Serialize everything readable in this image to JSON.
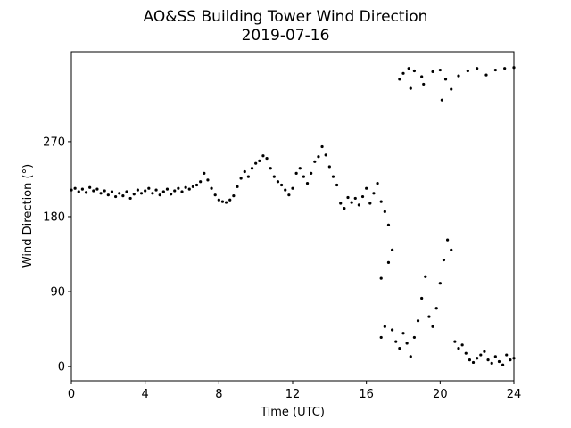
{
  "chart_data": {
    "type": "scatter",
    "title": "AO&SS Building Tower Wind Direction",
    "subtitle": "2019-07-16",
    "xlabel": "Time (UTC)",
    "ylabel": "Wind Direction (°)",
    "xlim": [
      0,
      24
    ],
    "ylim": [
      -17,
      378
    ],
    "xticks": [
      0,
      4,
      8,
      12,
      16,
      20,
      24
    ],
    "yticks": [
      0,
      90,
      180,
      270
    ],
    "xtick_labels": [
      "0",
      "4",
      "8",
      "12",
      "16",
      "20",
      "24"
    ],
    "ytick_labels": [
      "0",
      "90",
      "180",
      "270"
    ],
    "grid": false,
    "marker_color": "#000000",
    "series": [
      {
        "points": [
          [
            0.0,
            212
          ],
          [
            0.2,
            214
          ],
          [
            0.4,
            210
          ],
          [
            0.6,
            213
          ],
          [
            0.8,
            209
          ],
          [
            1.0,
            215
          ],
          [
            1.2,
            211
          ],
          [
            1.4,
            213
          ],
          [
            1.6,
            208
          ],
          [
            1.8,
            211
          ],
          [
            2.0,
            206
          ],
          [
            2.2,
            210
          ],
          [
            2.4,
            204
          ],
          [
            2.6,
            208
          ],
          [
            2.8,
            205
          ],
          [
            3.0,
            210
          ],
          [
            3.2,
            202
          ],
          [
            3.4,
            207
          ],
          [
            3.6,
            212
          ],
          [
            3.8,
            208
          ],
          [
            4.0,
            211
          ],
          [
            4.2,
            214
          ],
          [
            4.4,
            208
          ],
          [
            4.6,
            212
          ],
          [
            4.8,
            206
          ],
          [
            5.0,
            210
          ],
          [
            5.2,
            213
          ],
          [
            5.4,
            207
          ],
          [
            5.6,
            211
          ],
          [
            5.8,
            214
          ],
          [
            6.0,
            210
          ],
          [
            6.2,
            215
          ],
          [
            6.4,
            213
          ],
          [
            6.6,
            216
          ],
          [
            6.8,
            218
          ],
          [
            7.0,
            222
          ],
          [
            7.2,
            232
          ],
          [
            7.4,
            224
          ],
          [
            7.6,
            214
          ],
          [
            7.8,
            206
          ],
          [
            8.0,
            200
          ],
          [
            8.2,
            198
          ],
          [
            8.4,
            197
          ],
          [
            8.6,
            200
          ],
          [
            8.8,
            205
          ],
          [
            9.0,
            216
          ],
          [
            9.2,
            226
          ],
          [
            9.4,
            234
          ],
          [
            9.6,
            228
          ],
          [
            9.8,
            238
          ],
          [
            10.0,
            244
          ],
          [
            10.2,
            247
          ],
          [
            10.4,
            253
          ],
          [
            10.6,
            250
          ],
          [
            10.8,
            238
          ],
          [
            11.0,
            228
          ],
          [
            11.2,
            222
          ],
          [
            11.4,
            218
          ],
          [
            11.6,
            212
          ],
          [
            11.8,
            206
          ],
          [
            12.0,
            214
          ],
          [
            12.2,
            232
          ],
          [
            12.4,
            238
          ],
          [
            12.6,
            228
          ],
          [
            12.8,
            220
          ],
          [
            13.0,
            232
          ],
          [
            13.2,
            246
          ],
          [
            13.4,
            252
          ],
          [
            13.6,
            264
          ],
          [
            13.8,
            254
          ],
          [
            14.0,
            240
          ],
          [
            14.2,
            228
          ],
          [
            14.4,
            218
          ],
          [
            14.6,
            196
          ],
          [
            14.8,
            190
          ],
          [
            15.0,
            203
          ],
          [
            15.2,
            197
          ],
          [
            15.4,
            202
          ],
          [
            15.6,
            194
          ],
          [
            15.8,
            204
          ],
          [
            16.0,
            214
          ],
          [
            16.2,
            196
          ],
          [
            16.4,
            208
          ],
          [
            16.6,
            220
          ],
          [
            16.8,
            198
          ],
          [
            17.0,
            186
          ],
          [
            17.2,
            170
          ],
          [
            17.4,
            140
          ],
          [
            17.2,
            125
          ],
          [
            16.8,
            106
          ],
          [
            16.8,
            35
          ],
          [
            17.0,
            48
          ],
          [
            17.4,
            44
          ],
          [
            17.6,
            30
          ],
          [
            17.8,
            22
          ],
          [
            18.0,
            40
          ],
          [
            18.2,
            28
          ],
          [
            18.4,
            12
          ],
          [
            18.6,
            35
          ],
          [
            18.8,
            55
          ],
          [
            19.0,
            82
          ],
          [
            19.2,
            108
          ],
          [
            19.4,
            60
          ],
          [
            19.6,
            48
          ],
          [
            19.8,
            70
          ],
          [
            20.0,
            100
          ],
          [
            20.2,
            128
          ],
          [
            20.4,
            152
          ],
          [
            20.6,
            140
          ],
          [
            20.8,
            30
          ],
          [
            21.0,
            22
          ],
          [
            21.2,
            26
          ],
          [
            21.4,
            16
          ],
          [
            21.6,
            8
          ],
          [
            21.8,
            5
          ],
          [
            22.0,
            10
          ],
          [
            22.2,
            14
          ],
          [
            22.4,
            18
          ],
          [
            22.6,
            8
          ],
          [
            22.8,
            4
          ],
          [
            23.0,
            12
          ],
          [
            23.2,
            6
          ],
          [
            23.4,
            2
          ],
          [
            23.6,
            14
          ],
          [
            23.8,
            8
          ],
          [
            24.0,
            10
          ],
          [
            17.8,
            345
          ],
          [
            18.0,
            352
          ],
          [
            18.3,
            358
          ],
          [
            18.6,
            355
          ],
          [
            19.0,
            348
          ],
          [
            19.6,
            354
          ],
          [
            20.0,
            356
          ],
          [
            20.3,
            345
          ],
          [
            20.6,
            333
          ],
          [
            21.0,
            349
          ],
          [
            21.5,
            355
          ],
          [
            22.0,
            358
          ],
          [
            22.5,
            350
          ],
          [
            23.0,
            356
          ],
          [
            23.5,
            358
          ],
          [
            24.0,
            359
          ],
          [
            18.4,
            334
          ],
          [
            19.1,
            339
          ],
          [
            20.1,
            320
          ]
        ]
      }
    ]
  }
}
